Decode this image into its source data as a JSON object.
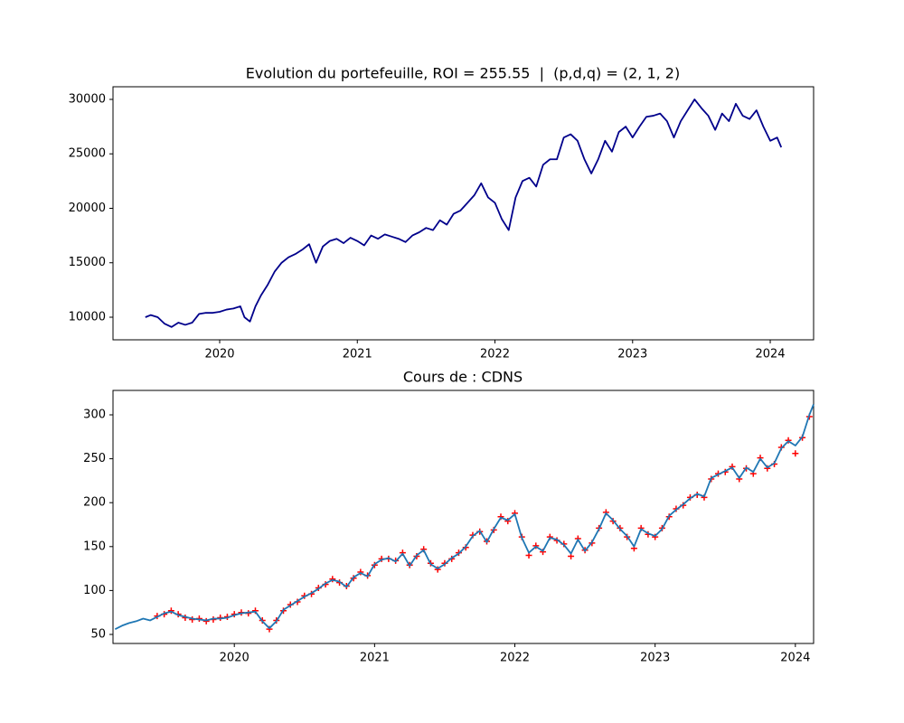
{
  "chart_data": [
    {
      "type": "line",
      "title": "Evolution du portefeuille, ROI = 255.55  |  (p,d,q) = (2, 1, 2)",
      "x": [
        2019.46,
        2019.5,
        2019.55,
        2019.6,
        2019.65,
        2019.7,
        2019.75,
        2019.8,
        2019.85,
        2019.9,
        2019.95,
        2020.0,
        2020.05,
        2020.1,
        2020.15,
        2020.18,
        2020.22,
        2020.26,
        2020.3,
        2020.35,
        2020.4,
        2020.45,
        2020.5,
        2020.55,
        2020.6,
        2020.65,
        2020.7,
        2020.75,
        2020.8,
        2020.85,
        2020.9,
        2020.95,
        2021.0,
        2021.05,
        2021.1,
        2021.15,
        2021.2,
        2021.25,
        2021.3,
        2021.35,
        2021.4,
        2021.45,
        2021.5,
        2021.55,
        2021.6,
        2021.65,
        2021.7,
        2021.75,
        2021.8,
        2021.85,
        2021.9,
        2021.95,
        2022.0,
        2022.05,
        2022.1,
        2022.15,
        2022.2,
        2022.25,
        2022.3,
        2022.35,
        2022.4,
        2022.45,
        2022.5,
        2022.55,
        2022.6,
        2022.65,
        2022.7,
        2022.75,
        2022.8,
        2022.85,
        2022.9,
        2022.95,
        2023.0,
        2023.05,
        2023.1,
        2023.15,
        2023.2,
        2023.25,
        2023.3,
        2023.35,
        2023.4,
        2023.45,
        2023.5,
        2023.55,
        2023.6,
        2023.65,
        2023.7,
        2023.75,
        2023.8,
        2023.85,
        2023.9,
        2023.95,
        2024.0,
        2024.05,
        2024.08
      ],
      "series": [
        {
          "color": "#00008b",
          "values": [
            10000,
            10200,
            10000,
            9400,
            9100,
            9500,
            9300,
            9500,
            10300,
            10400,
            10400,
            10500,
            10700,
            10800,
            11000,
            10000,
            9600,
            11000,
            12000,
            13000,
            14200,
            15000,
            15500,
            15800,
            16200,
            16700,
            15000,
            16500,
            17000,
            17200,
            16800,
            17300,
            17000,
            16600,
            17500,
            17200,
            17600,
            17400,
            17200,
            16900,
            17500,
            17800,
            18200,
            18000,
            18900,
            18500,
            19500,
            19800,
            20500,
            21200,
            22300,
            21000,
            20500,
            19000,
            18000,
            21000,
            22500,
            22800,
            22000,
            24000,
            24500,
            24500,
            26500,
            26800,
            26200,
            24500,
            23200,
            24500,
            26200,
            25200,
            27000,
            27500,
            26500,
            27500,
            28400,
            28500,
            28700,
            28000,
            26500,
            28000,
            29000,
            30000,
            29200,
            28500,
            27200,
            28700,
            28000,
            29600,
            28500,
            28200,
            29000,
            27500,
            26200,
            26500,
            25600
          ]
        }
      ],
      "xlim": [
        2019.225,
        2024.315
      ],
      "xticks": [
        2020,
        2021,
        2022,
        2023,
        2024
      ],
      "ylim": [
        7925,
        31160
      ],
      "yticks": [
        10000,
        15000,
        20000,
        25000,
        30000
      ]
    },
    {
      "type": "line",
      "title": "Cours de : CDNS",
      "x": [
        2019.15,
        2019.2,
        2019.25,
        2019.3,
        2019.35,
        2019.4,
        2019.45,
        2019.5,
        2019.55,
        2019.6,
        2019.65,
        2019.7,
        2019.75,
        2019.8,
        2019.85,
        2019.9,
        2019.95,
        2020.0,
        2020.05,
        2020.1,
        2020.15,
        2020.2,
        2020.25,
        2020.3,
        2020.35,
        2020.4,
        2020.45,
        2020.5,
        2020.55,
        2020.6,
        2020.65,
        2020.7,
        2020.75,
        2020.8,
        2020.85,
        2020.9,
        2020.95,
        2021.0,
        2021.05,
        2021.1,
        2021.15,
        2021.2,
        2021.25,
        2021.3,
        2021.35,
        2021.4,
        2021.45,
        2021.5,
        2021.55,
        2021.6,
        2021.65,
        2021.7,
        2021.75,
        2021.8,
        2021.85,
        2021.9,
        2021.95,
        2022.0,
        2022.05,
        2022.1,
        2022.15,
        2022.2,
        2022.25,
        2022.3,
        2022.35,
        2022.4,
        2022.45,
        2022.5,
        2022.55,
        2022.6,
        2022.65,
        2022.7,
        2022.75,
        2022.8,
        2022.85,
        2022.9,
        2022.95,
        2023.0,
        2023.05,
        2023.1,
        2023.15,
        2023.2,
        2023.25,
        2023.3,
        2023.35,
        2023.4,
        2023.45,
        2023.5,
        2023.55,
        2023.6,
        2023.65,
        2023.7,
        2023.75,
        2023.8,
        2023.85,
        2023.9,
        2023.95,
        2024.0,
        2024.05,
        2024.1,
        2024.13
      ],
      "series": [
        {
          "color": "#ff0000",
          "marker": "+",
          "values": [
            null,
            null,
            null,
            null,
            null,
            null,
            71,
            73,
            77,
            73,
            69,
            67,
            68,
            65,
            67,
            69,
            70,
            73,
            75,
            74,
            77,
            66,
            56,
            66,
            77,
            84,
            87,
            94,
            96,
            103,
            107,
            113,
            109,
            105,
            114,
            121,
            117,
            129,
            136,
            136,
            134,
            143,
            129,
            139,
            147,
            131,
            124,
            131,
            136,
            143,
            149,
            163,
            167,
            156,
            169,
            184,
            179,
            188,
            161,
            140,
            151,
            144,
            161,
            157,
            153,
            139,
            159,
            146,
            154,
            171,
            189,
            179,
            171,
            161,
            148,
            171,
            164,
            161,
            171,
            184,
            193,
            197,
            206,
            209,
            206,
            227,
            233,
            235,
            241,
            227,
            239,
            233,
            251,
            239,
            244,
            263,
            271,
            256,
            274,
            298,
            null
          ]
        },
        {
          "color": "#1f77b4",
          "values": [
            56,
            60,
            63,
            65,
            68,
            66,
            70,
            74,
            76,
            72,
            70,
            68,
            67,
            66,
            68,
            68,
            69,
            72,
            74,
            75,
            76,
            65,
            57,
            65,
            78,
            83,
            88,
            93,
            97,
            102,
            108,
            112,
            110,
            104,
            115,
            120,
            116,
            130,
            135,
            137,
            133,
            142,
            128,
            140,
            146,
            130,
            125,
            130,
            137,
            142,
            150,
            162,
            168,
            155,
            170,
            183,
            180,
            187,
            160,
            143,
            150,
            145,
            160,
            158,
            152,
            142,
            158,
            145,
            155,
            170,
            188,
            180,
            170,
            162,
            150,
            170,
            165,
            162,
            170,
            185,
            192,
            198,
            205,
            210,
            207,
            228,
            232,
            236,
            240,
            228,
            240,
            235,
            250,
            240,
            245,
            262,
            270,
            265,
            275,
            300,
            312
          ]
        }
      ],
      "xlim": [
        2019.135,
        2024.13
      ],
      "xticks": [
        2020,
        2021,
        2022,
        2023,
        2024
      ],
      "ylim": [
        39.7,
        327.8
      ],
      "yticks": [
        50,
        100,
        150,
        200,
        250,
        300
      ]
    }
  ]
}
